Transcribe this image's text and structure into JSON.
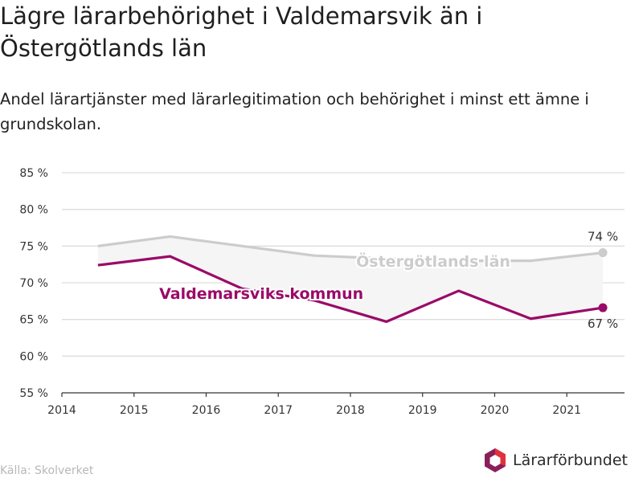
{
  "title": "Lägre lärarbehörighet i Valdemarsvik än i Östergötlands län",
  "subtitle": "Andel lärartjänster med lärarlegitimation och behörighet i minst ett ämne i grundskolan.",
  "source": "Källa: Skolverket",
  "logo_text": "Lärarförbundet",
  "colors": {
    "kommun": "#9a0a68",
    "lan": "#cccccc",
    "grid": "#dddddd",
    "band": "#f5f5f5",
    "logo_red": "#e0313c",
    "logo_purple": "#8a1f5b"
  },
  "chart_data": {
    "type": "line",
    "x": [
      2014.5,
      2015.5,
      2016.5,
      2017.5,
      2018.5,
      2019.5,
      2020.5,
      2021.5
    ],
    "xticks": [
      2014,
      2015,
      2016,
      2017,
      2018,
      2019,
      2020,
      2021
    ],
    "xlim": [
      2014,
      2021.8
    ],
    "ylim": [
      55,
      85
    ],
    "yticks": [
      55,
      60,
      65,
      70,
      75,
      80,
      85
    ],
    "ytick_labels": [
      "55 %",
      "60 %",
      "65 %",
      "70 %",
      "75 %",
      "80 %",
      "85 %"
    ],
    "grid": true,
    "series": [
      {
        "name": "Östergötlands län",
        "values": [
          75.0,
          76.3,
          75.0,
          73.7,
          73.3,
          73.0,
          73.0,
          74.1
        ],
        "end_label": "74 %"
      },
      {
        "name": "Valdemarsviks kommun",
        "values": [
          72.4,
          73.6,
          69.2,
          67.6,
          64.7,
          68.9,
          65.1,
          66.6
        ],
        "end_label": "67 %"
      }
    ]
  }
}
